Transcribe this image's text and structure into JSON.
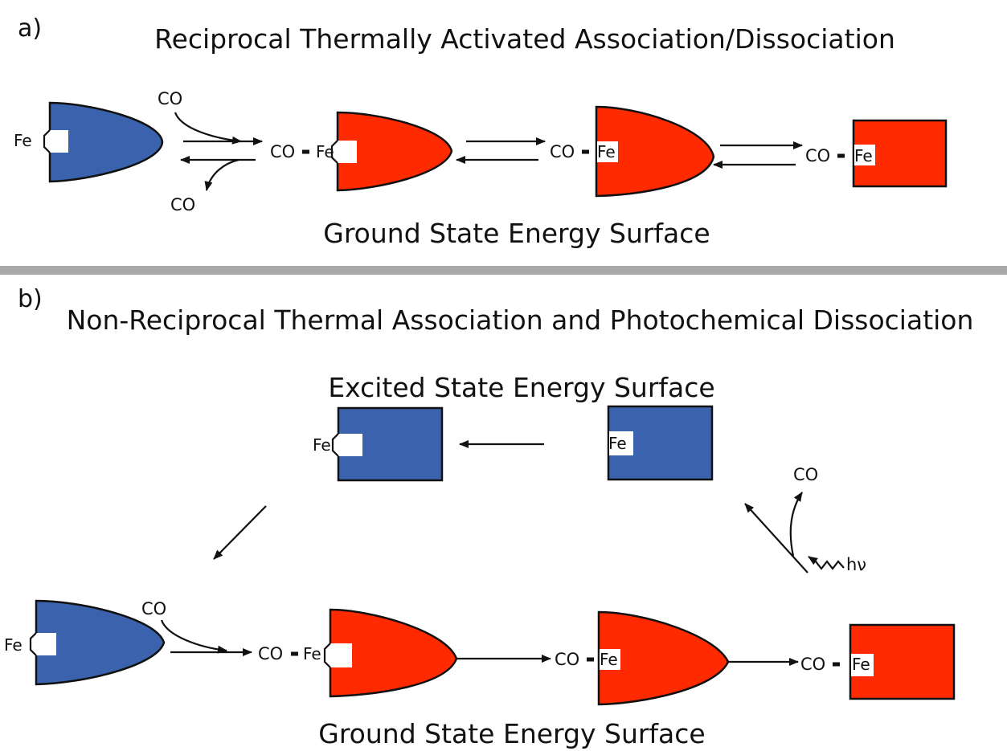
{
  "colors": {
    "blue": "#3a62ad",
    "red": "#ff2a00",
    "divider": "#a9a9a9"
  },
  "panel_a": {
    "label": "a)",
    "title": "Reciprocal Thermally Activated Association/Dissociation",
    "surface": "Ground State Energy Surface",
    "co_in": "CO",
    "co_out": "CO",
    "species": [
      {
        "fe": "Fe"
      },
      {
        "co": "CO",
        "fe": "Fe"
      },
      {
        "co": "CO",
        "fe": "Fe"
      },
      {
        "co": "CO",
        "fe": "Fe"
      }
    ]
  },
  "panel_b": {
    "label": "b)",
    "title": "Non-Reciprocal Thermal Association and Photochemical Dissociation",
    "excited_surface": "Excited State Energy Surface",
    "ground_surface": "Ground State Energy Surface",
    "excited_species": [
      {
        "fe": "Fe"
      },
      {
        "fe": "Fe"
      }
    ],
    "co_in": "CO",
    "co_released": "CO",
    "photon": "hν",
    "species": [
      {
        "fe": "Fe"
      },
      {
        "co": "CO",
        "fe": "Fe"
      },
      {
        "co": "CO",
        "fe": "Fe"
      },
      {
        "co": "CO",
        "fe": "Fe"
      }
    ]
  }
}
